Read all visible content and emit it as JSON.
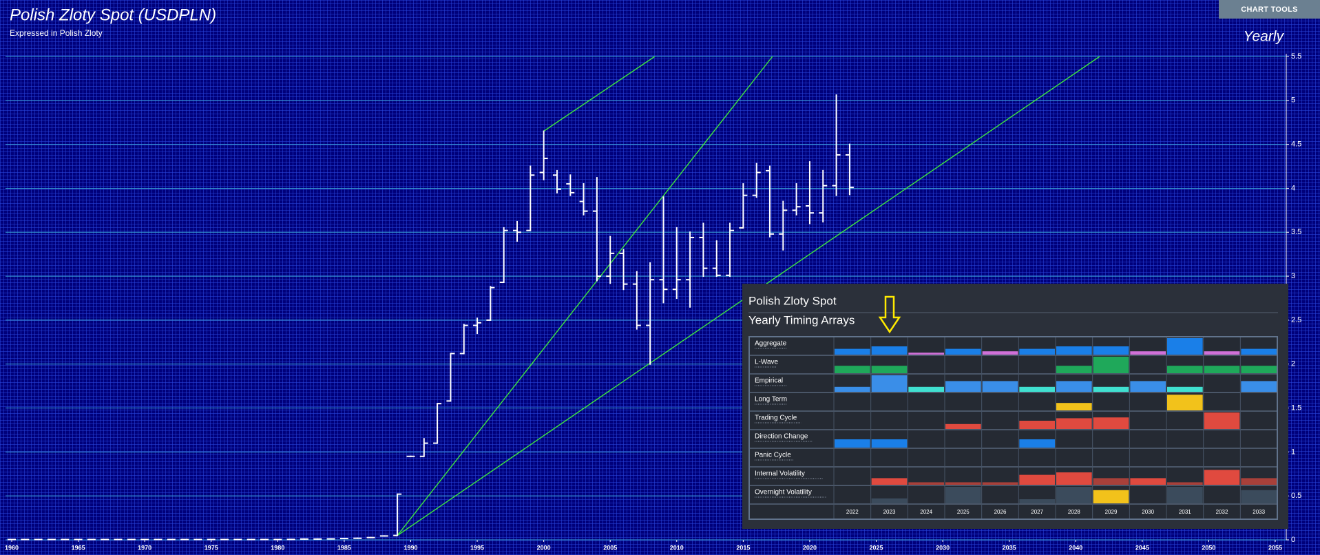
{
  "chart_data": {
    "type": "ohlc",
    "title": "Polish Zloty Spot (USDPLN)",
    "subtitle": "Expressed in Polish Zloty",
    "period_label": "Yearly",
    "color": "#ffffff",
    "x": [
      1960,
      1961,
      1962,
      1963,
      1964,
      1965,
      1966,
      1967,
      1968,
      1969,
      1970,
      1971,
      1972,
      1973,
      1974,
      1975,
      1976,
      1977,
      1978,
      1979,
      1980,
      1981,
      1982,
      1983,
      1984,
      1985,
      1986,
      1987,
      1988,
      1989,
      1990,
      1991,
      1992,
      1993,
      1994,
      1995,
      1996,
      1997,
      1998,
      1999,
      2000,
      2001,
      2002,
      2003,
      2004,
      2005,
      2006,
      2007,
      2008,
      2009,
      2010,
      2011,
      2012,
      2013,
      2014,
      2015,
      2016,
      2017,
      2018,
      2019,
      2020,
      2021,
      2022,
      2023
    ],
    "open": [
      0.004,
      0.004,
      0.004,
      0.004,
      0.004,
      0.004,
      0.004,
      0.004,
      0.004,
      0.004,
      0.004,
      0.004,
      0.004,
      0.004,
      0.004,
      0.004,
      0.004,
      0.004,
      0.004,
      0.004,
      0.004,
      0.005,
      0.009,
      0.009,
      0.011,
      0.015,
      0.018,
      0.026,
      0.044,
      0.05,
      0.95,
      0.95,
      1.1,
      1.58,
      2.12,
      2.44,
      2.5,
      2.93,
      3.52,
      3.52,
      4.18,
      4.15,
      4.05,
      3.85,
      3.74,
      3.0,
      3.26,
      2.91,
      2.44,
      2.96,
      2.85,
      2.96,
      3.44,
      3.09,
      3.01,
      3.55,
      3.92,
      4.2,
      3.48,
      3.75,
      3.8,
      3.72,
      4.03,
      4.38
    ],
    "high": [
      0.004,
      0.004,
      0.004,
      0.004,
      0.004,
      0.004,
      0.004,
      0.004,
      0.004,
      0.004,
      0.004,
      0.004,
      0.004,
      0.004,
      0.004,
      0.004,
      0.004,
      0.004,
      0.004,
      0.004,
      0.004,
      0.005,
      0.009,
      0.009,
      0.011,
      0.015,
      0.018,
      0.026,
      0.044,
      0.52,
      0.95,
      1.15,
      1.55,
      2.12,
      2.45,
      2.52,
      2.88,
      3.55,
      3.62,
      4.25,
      4.65,
      4.2,
      4.15,
      4.05,
      4.12,
      3.45,
      3.3,
      3.05,
      3.15,
      3.9,
      3.55,
      3.5,
      3.6,
      3.4,
      3.6,
      4.05,
      4.28,
      4.25,
      3.85,
      4.05,
      4.3,
      4.2,
      5.06,
      4.5
    ],
    "low": [
      0.004,
      0.004,
      0.004,
      0.004,
      0.004,
      0.004,
      0.004,
      0.004,
      0.004,
      0.004,
      0.004,
      0.004,
      0.004,
      0.004,
      0.004,
      0.004,
      0.004,
      0.004,
      0.004,
      0.004,
      0.004,
      0.005,
      0.009,
      0.009,
      0.011,
      0.015,
      0.018,
      0.026,
      0.044,
      0.05,
      0.95,
      0.95,
      1.1,
      1.58,
      2.12,
      2.35,
      2.5,
      2.93,
      3.4,
      3.52,
      4.1,
      3.95,
      3.92,
      3.7,
      2.95,
      2.92,
      2.85,
      2.4,
      2.0,
      2.7,
      2.75,
      2.65,
      3.0,
      3.0,
      3.0,
      3.55,
      3.9,
      3.45,
      3.3,
      3.7,
      3.6,
      3.62,
      3.92,
      3.93
    ],
    "close": [
      0.004,
      0.004,
      0.004,
      0.004,
      0.004,
      0.004,
      0.004,
      0.004,
      0.004,
      0.004,
      0.004,
      0.004,
      0.004,
      0.004,
      0.004,
      0.004,
      0.004,
      0.004,
      0.004,
      0.004,
      0.004,
      0.005,
      0.009,
      0.009,
      0.011,
      0.015,
      0.018,
      0.026,
      0.044,
      0.52,
      0.95,
      1.1,
      1.55,
      2.12,
      2.44,
      2.47,
      2.87,
      3.52,
      3.5,
      4.15,
      4.34,
      3.99,
      3.95,
      3.74,
      3.0,
      3.26,
      2.91,
      2.44,
      2.96,
      2.85,
      2.96,
      3.44,
      3.09,
      3.01,
      3.52,
      3.92,
      4.18,
      3.48,
      3.75,
      3.79,
      3.72,
      4.03,
      4.38,
      4.01
    ],
    "xlim": [
      1960,
      2055
    ],
    "xticks": [
      1960,
      1965,
      1970,
      1975,
      1980,
      1985,
      1990,
      1995,
      2000,
      2005,
      2010,
      2015,
      2020,
      2025,
      2030,
      2035,
      2040,
      2045,
      2050,
      2055
    ],
    "ylim": [
      0,
      5.5
    ],
    "yticks": [
      0,
      0.5,
      1,
      1.5,
      2,
      2.5,
      3,
      3.5,
      4,
      4.5,
      5,
      5.5
    ],
    "grid": true,
    "grid_color": "#3aa3d6",
    "trendlines": [
      {
        "color": "#3ee83e",
        "x": [
          2000,
          2008.35
        ],
        "y": [
          4.65,
          5.5
        ]
      },
      {
        "color": "#3ee83e",
        "x": [
          1989,
          2017.2
        ],
        "y": [
          0.05,
          5.5
        ]
      },
      {
        "color": "#3ee83e",
        "x": [
          1989,
          2041.8
        ],
        "y": [
          0.05,
          5.5
        ]
      }
    ]
  },
  "timing_arrays": {
    "title": "Polish Zloty Spot",
    "subtitle": "Yearly Timing Arrays",
    "columns": [
      2022,
      2023,
      2024,
      2025,
      2026,
      2027,
      2028,
      2029,
      2030,
      2031,
      2032,
      2033
    ],
    "rows": [
      {
        "name": "Aggregate",
        "values": [
          0.35,
          0.5,
          0.12,
          0.35,
          0.2,
          0.35,
          0.5,
          0.5,
          0.2,
          1.0,
          0.2,
          0.35
        ],
        "colors": [
          "#1a7fe8",
          "#1a7fe8",
          "#d070d8",
          "#1a7fe8",
          "#d070d8",
          "#1a7fe8",
          "#1a7fe8",
          "#1a7fe8",
          "#d070d8",
          "#1a7fe8",
          "#d070d8",
          "#1a7fe8"
        ]
      },
      {
        "name": "L-Wave",
        "values": [
          0.45,
          0.45,
          0,
          0,
          0,
          0,
          0.45,
          1.0,
          0,
          0.45,
          0.45,
          0.45
        ],
        "colors": [
          "#1fa85a",
          "#1fa85a",
          "#1fa85a",
          "#1fa85a",
          "#1fa85a",
          "#1fa85a",
          "#1fa85a",
          "#1fa85a",
          "#1fa85a",
          "#1fa85a",
          "#1fa85a",
          "#1fa85a"
        ]
      },
      {
        "name": "Empirical",
        "values": [
          0.3,
          1.0,
          0.3,
          0.65,
          0.65,
          0.3,
          0.65,
          0.3,
          0.65,
          0.3,
          0,
          0.65
        ],
        "colors": [
          "#3a8ee8",
          "#3a8ee8",
          "#40e0d0",
          "#3a8ee8",
          "#3a8ee8",
          "#40e0d0",
          "#3a8ee8",
          "#40e0d0",
          "#3a8ee8",
          "#40e0d0",
          "#3a8ee8",
          "#3a8ee8"
        ]
      },
      {
        "name": "Long Term",
        "values": [
          0,
          0,
          0,
          0,
          0,
          0,
          0.45,
          0,
          0,
          0.95,
          0,
          0
        ],
        "colors": [
          "#f2c21b",
          "#f2c21b",
          "#f2c21b",
          "#f2c21b",
          "#f2c21b",
          "#f2c21b",
          "#f2c21b",
          "#f2c21b",
          "#f2c21b",
          "#f2c21b",
          "#f2c21b",
          "#f2c21b"
        ]
      },
      {
        "name": "Trading Cycle",
        "values": [
          0,
          0,
          0,
          0.3,
          0,
          0.5,
          0.65,
          0.7,
          0,
          0,
          1.0,
          0
        ],
        "colors": [
          "#e04a3f",
          "#e04a3f",
          "#e04a3f",
          "#e04a3f",
          "#e04a3f",
          "#e04a3f",
          "#e04a3f",
          "#e04a3f",
          "#e04a3f",
          "#e04a3f",
          "#e04a3f",
          "#e04a3f"
        ]
      },
      {
        "name": "Direction Change",
        "values": [
          0.5,
          0.5,
          0,
          0,
          0,
          0.5,
          0,
          0,
          0,
          0,
          0,
          0
        ],
        "colors": [
          "#1a7fe8",
          "#1a7fe8",
          "#1a7fe8",
          "#1a7fe8",
          "#1a7fe8",
          "#1a7fe8",
          "#1a7fe8",
          "#1a7fe8",
          "#1a7fe8",
          "#1a7fe8",
          "#1a7fe8",
          "#1a7fe8"
        ]
      },
      {
        "name": "Panic Cycle",
        "values": [
          0,
          0,
          0,
          0,
          0,
          0,
          0,
          0,
          0,
          0,
          0,
          0
        ],
        "colors": [
          "#e04a3f",
          "#e04a3f",
          "#e04a3f",
          "#e04a3f",
          "#e04a3f",
          "#e04a3f",
          "#e04a3f",
          "#e04a3f",
          "#e04a3f",
          "#e04a3f",
          "#e04a3f",
          "#e04a3f"
        ]
      },
      {
        "name": "Internal Volatility",
        "values": [
          0,
          0.4,
          0.15,
          0.15,
          0.15,
          0.6,
          0.75,
          0.4,
          0.4,
          0.15,
          0.9,
          0.4
        ],
        "colors": [
          "#e04a3f",
          "#e04a3f",
          "#a8403a",
          "#a8403a",
          "#a8403a",
          "#e04a3f",
          "#e04a3f",
          "#a8403a",
          "#e04a3f",
          "#a8403a",
          "#e04a3f",
          "#a8403a"
        ]
      },
      {
        "name": "Overnight Volatility",
        "values": [
          0,
          0.3,
          0,
          1.0,
          0,
          0.25,
          1.0,
          0.8,
          0,
          1.0,
          0,
          0.8
        ],
        "colors": [
          "#3b4b5c",
          "#3b4b5c",
          "#3b4b5c",
          "#3b4b5c",
          "#3b4b5c",
          "#3b4b5c",
          "#3b4b5c",
          "#f2c21b",
          "#3b4b5c",
          "#3b4b5c",
          "#3b4b5c",
          "#3b4b5c"
        ]
      }
    ]
  },
  "toolbar": {
    "button": "CHART TOOLS"
  }
}
